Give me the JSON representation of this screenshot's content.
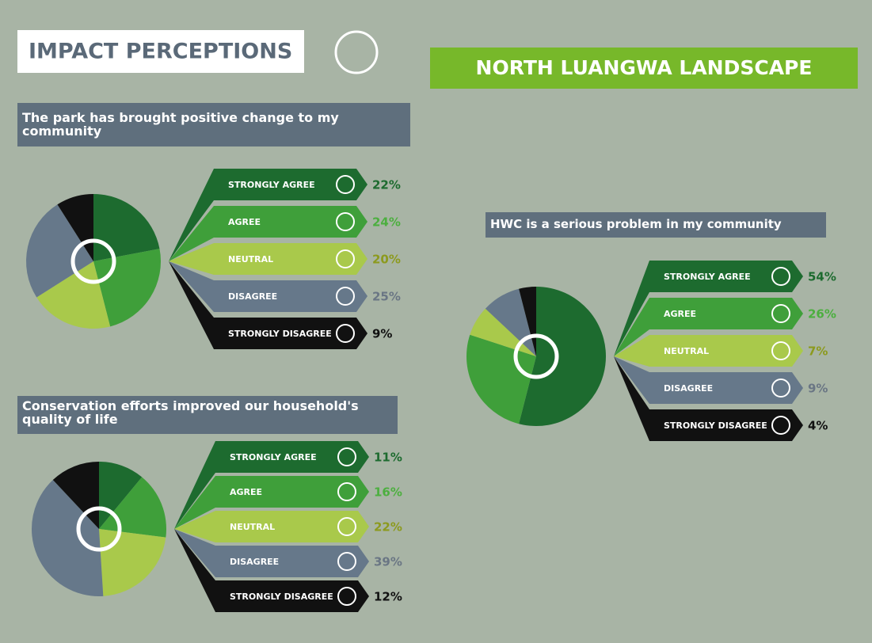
{
  "header": {
    "title": "IMPACT PERCEPTIONS",
    "region": "NORTH LUANGWA LANDSCAPE"
  },
  "chart_data": [
    {
      "type": "pie",
      "title": "The park has brought positive change to my community",
      "categories": [
        "STRONGLY AGREE",
        "AGREE",
        "NEUTRAL",
        "DISAGREE",
        "STRONGLY DISAGREE"
      ],
      "values": [
        22,
        24,
        20,
        25,
        9
      ],
      "value_labels": [
        "22%",
        "24%",
        "20%",
        "25%",
        "9%"
      ],
      "colors": [
        "#1d6b2f",
        "#3f9f3a",
        "#a9c94b",
        "#66788a",
        "#111111"
      ]
    },
    {
      "type": "pie",
      "title": "Conservation efforts improved our household's quality of life",
      "categories": [
        "STRONGLY AGREE",
        "AGREE",
        "NEUTRAL",
        "DISAGREE",
        "STRONGLY DISAGREE"
      ],
      "values": [
        11,
        16,
        22,
        39,
        12
      ],
      "value_labels": [
        "11%",
        "16%",
        "22%",
        "39%",
        "12%"
      ],
      "colors": [
        "#1d6b2f",
        "#3f9f3a",
        "#a9c94b",
        "#66788a",
        "#111111"
      ]
    },
    {
      "type": "pie",
      "title": "HWC is a serious problem in my community",
      "categories": [
        "STRONGLY AGREE",
        "AGREE",
        "NEUTRAL",
        "DISAGREE",
        "STRONGLY DISAGREE"
      ],
      "values": [
        54,
        26,
        7,
        9,
        4
      ],
      "value_labels": [
        "54%",
        "26%",
        "7%",
        "9%",
        "4%"
      ],
      "colors": [
        "#1d6b2f",
        "#3f9f3a",
        "#a9c94b",
        "#66788a",
        "#111111"
      ]
    }
  ]
}
